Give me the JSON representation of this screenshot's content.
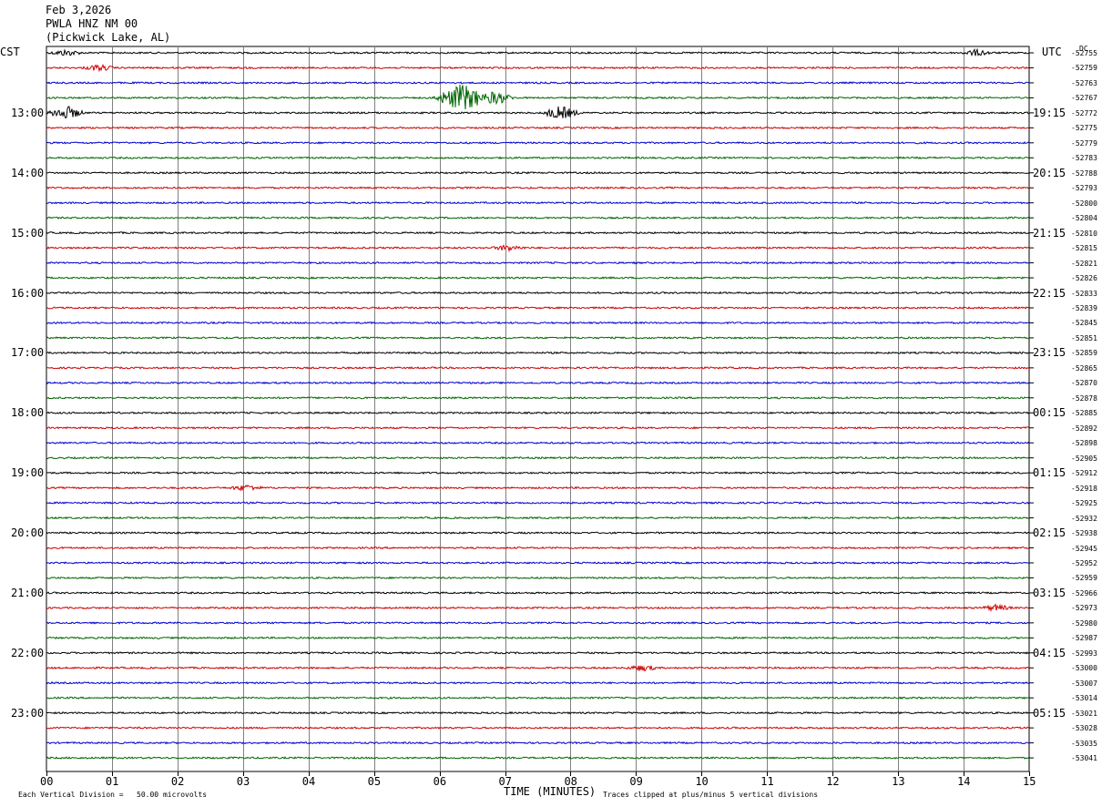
{
  "header": {
    "date": "Feb 3,2026",
    "station": "PWLA HNZ NM 00",
    "location": "(Pickwick Lake, AL)"
  },
  "left_zone_label": "CST",
  "right_zone_label": "UTC",
  "dc_label": "DC",
  "footer": {
    "x_axis_title": "TIME (MINUTES)",
    "scale_note": "Each Vertical Division =   50.00 microvolts",
    "clip_note": "Traces clipped at plus/minus 5 vertical divisions"
  },
  "chart_data": {
    "type": "line",
    "subtype": "helicorder",
    "x": {
      "label": "TIME (MINUTES)",
      "range": [
        0,
        15
      ],
      "ticks": [
        "00",
        "01",
        "02",
        "03",
        "04",
        "05",
        "06",
        "07",
        "08",
        "09",
        "10",
        "11",
        "12",
        "13",
        "14",
        "15"
      ]
    },
    "grid": true,
    "trace_colors": [
      "#000000",
      "#cc0000",
      "#0000cc",
      "#006600"
    ],
    "left_hour_labels": [
      "13:00",
      "14:00",
      "15:00",
      "16:00",
      "17:00",
      "18:00",
      "19:00",
      "20:00",
      "21:00",
      "22:00",
      "23:00"
    ],
    "right_hour_labels": [
      "19:15",
      "20:15",
      "21:15",
      "22:15",
      "23:15",
      "00:15",
      "01:15",
      "02:15",
      "03:15",
      "04:15",
      "05:15"
    ],
    "dc_offsets": [
      "-52755",
      "-52759",
      "-52763",
      "-52767",
      "-52772",
      "-52775",
      "-52779",
      "-52783",
      "-52788",
      "-52793",
      "-52800",
      "-52804",
      "-52810",
      "-52815",
      "-52821",
      "-52826",
      "-52833",
      "-52839",
      "-52845",
      "-52851",
      "-52859",
      "-52865",
      "-52870",
      "-52878",
      "-52885",
      "-52892",
      "-52898",
      "-52905",
      "-52912",
      "-52918",
      "-52925",
      "-52932",
      "-52938",
      "-52945",
      "-52952",
      "-52959",
      "-52966",
      "-52973",
      "-52980",
      "-52987",
      "-52993",
      "-53000",
      "-53007",
      "-53014",
      "-53021",
      "-53028",
      "-53035",
      "-53041"
    ],
    "events": [
      {
        "trace": 3,
        "minute": 6.35,
        "amplitude": "large"
      },
      {
        "trace": 3,
        "minute": 6.85,
        "amplitude": "medium"
      },
      {
        "trace": 4,
        "minute": 0.3,
        "amplitude": "medium"
      },
      {
        "trace": 4,
        "minute": 7.85,
        "amplitude": "medium"
      },
      {
        "trace": 1,
        "minute": 0.8,
        "amplitude": "small"
      },
      {
        "trace": 29,
        "minute": 3.05,
        "amplitude": "small"
      },
      {
        "trace": 0,
        "minute": 0.3,
        "amplitude": "small"
      },
      {
        "trace": 0,
        "minute": 14.2,
        "amplitude": "small"
      },
      {
        "trace": 13,
        "minute": 7.05,
        "amplitude": "small"
      },
      {
        "trace": 37,
        "minute": 14.5,
        "amplitude": "small"
      },
      {
        "trace": 41,
        "minute": 9.1,
        "amplitude": "small"
      }
    ]
  }
}
